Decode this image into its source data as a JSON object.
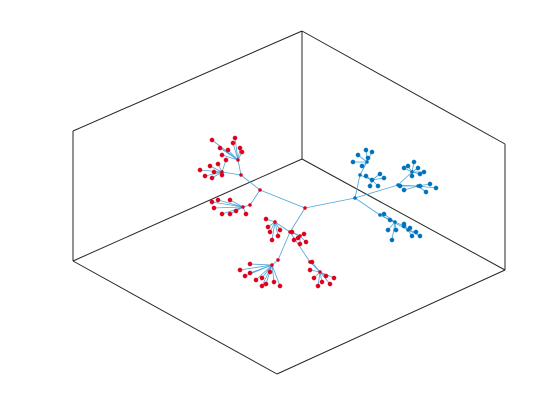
{
  "figure": {
    "type": "3d-tree-plot",
    "background": "#ffffff",
    "axes_box_color": "#262626",
    "edge_color": "#4da6d9",
    "groups": [
      {
        "name": "red-subtree",
        "color": "#e0001b",
        "node_fill": "#e0001b"
      },
      {
        "name": "blue-subtree",
        "color": "#0072bd",
        "node_fill": "#0072bd"
      }
    ]
  }
}
